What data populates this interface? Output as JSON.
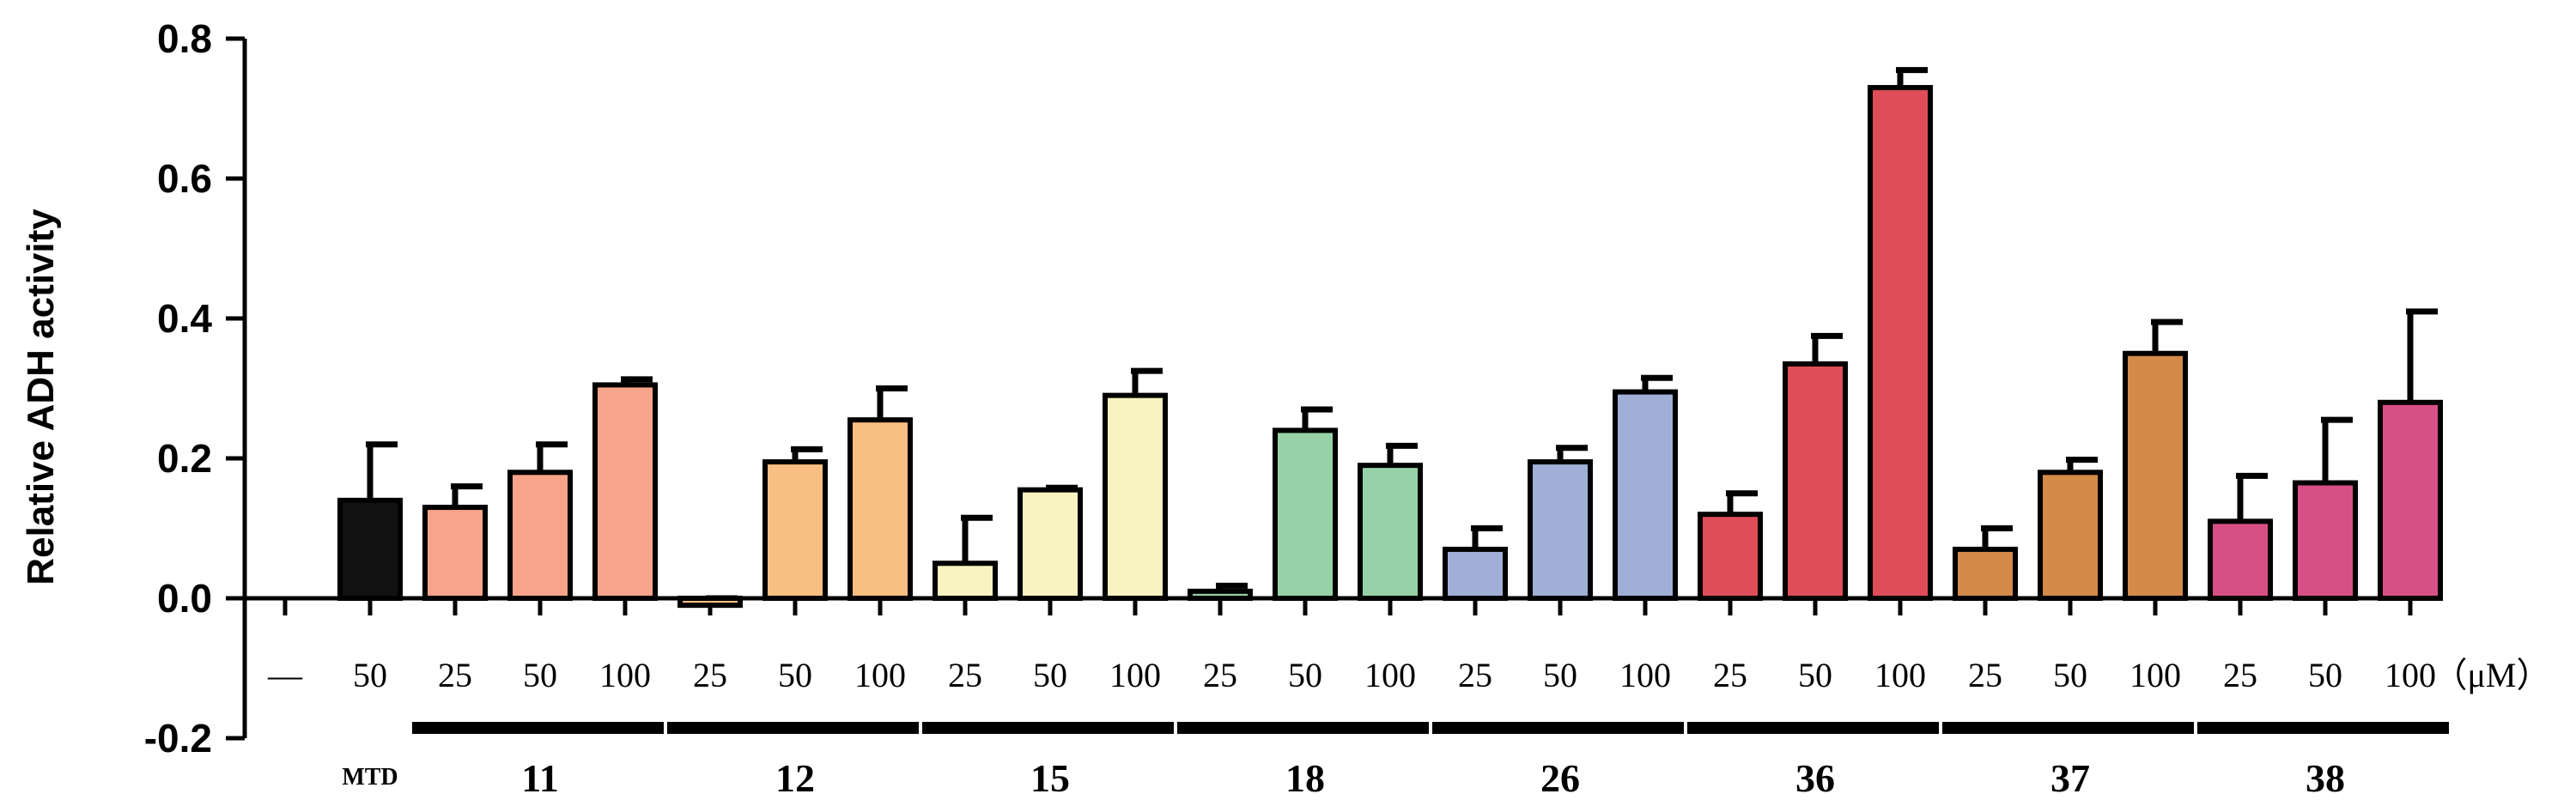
{
  "chart_data": {
    "type": "bar",
    "ylabel": "Relative ADH activity",
    "ylim": [
      -0.2,
      0.8
    ],
    "yticks": [
      "0.8",
      "0.6",
      "0.4",
      "0.2",
      "0.0",
      "-0.2"
    ],
    "unit_label": "（μM）",
    "groups": [
      {
        "label": "MTD",
        "color": "#111111",
        "conc": [
          "—",
          "50"
        ],
        "values": [
          null,
          0.14
        ],
        "errors": [
          null,
          0.08
        ]
      },
      {
        "label": "11",
        "color": "#F7A48A",
        "conc": [
          "25",
          "50",
          "100"
        ],
        "values": [
          0.13,
          0.18,
          0.305
        ],
        "errors": [
          0.03,
          0.04,
          0.008
        ]
      },
      {
        "label": "12",
        "color": "#F9BE82",
        "conc": [
          "25",
          "50",
          "100"
        ],
        "values": [
          -0.01,
          0.195,
          0.255
        ],
        "errors": [
          0.01,
          0.018,
          0.045
        ]
      },
      {
        "label": "15",
        "color": "#F8F3C0",
        "conc": [
          "25",
          "50",
          "100"
        ],
        "values": [
          0.05,
          0.155,
          0.29
        ],
        "errors": [
          0.065,
          0.003,
          0.035
        ]
      },
      {
        "label": "18",
        "color": "#97D1A8",
        "conc": [
          "25",
          "50",
          "100"
        ],
        "values": [
          0.01,
          0.24,
          0.19
        ],
        "errors": [
          0.008,
          0.03,
          0.028
        ]
      },
      {
        "label": "26",
        "color": "#9FAFD6",
        "conc": [
          "25",
          "50",
          "100"
        ],
        "values": [
          0.07,
          0.195,
          0.295
        ],
        "errors": [
          0.03,
          0.02,
          0.02
        ]
      },
      {
        "label": "36",
        "color": "#DF4D59",
        "conc": [
          "25",
          "50",
          "100"
        ],
        "values": [
          0.12,
          0.335,
          0.73
        ],
        "errors": [
          0.03,
          0.04,
          0.025
        ]
      },
      {
        "label": "37",
        "color": "#D48A48",
        "conc": [
          "25",
          "50",
          "100"
        ],
        "values": [
          0.07,
          0.18,
          0.35
        ],
        "errors": [
          0.03,
          0.018,
          0.045
        ]
      },
      {
        "label": "38",
        "color": "#D65086",
        "conc": [
          "25",
          "50",
          "100"
        ],
        "values": [
          0.11,
          0.165,
          0.28
        ],
        "errors": [
          0.065,
          0.09,
          0.13
        ]
      }
    ]
  }
}
